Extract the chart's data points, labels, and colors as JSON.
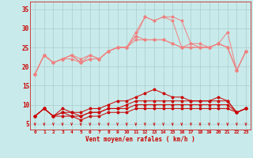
{
  "x": [
    0,
    1,
    2,
    3,
    4,
    5,
    6,
    7,
    8,
    9,
    10,
    11,
    12,
    13,
    14,
    15,
    16,
    17,
    18,
    19,
    20,
    21,
    22,
    23
  ],
  "line1": [
    18,
    23,
    21,
    22,
    23,
    22,
    23,
    22,
    24,
    25,
    25,
    29,
    33,
    32,
    33,
    33,
    32,
    26,
    26,
    25,
    26,
    25,
    19,
    24
  ],
  "line2": [
    18,
    23,
    21,
    22,
    22,
    21,
    23,
    22,
    24,
    25,
    25,
    28,
    33,
    32,
    33,
    32,
    25,
    26,
    25,
    25,
    26,
    29,
    19,
    24
  ],
  "line3": [
    18,
    23,
    21,
    22,
    23,
    21,
    22,
    22,
    24,
    25,
    25,
    28,
    27,
    27,
    27,
    26,
    25,
    25,
    25,
    25,
    26,
    25,
    19,
    24
  ],
  "line4": [
    18,
    23,
    21,
    22,
    23,
    21,
    22,
    22,
    24,
    25,
    25,
    27,
    27,
    27,
    27,
    26,
    25,
    25,
    25,
    25,
    26,
    25,
    19,
    24
  ],
  "line5": [
    7,
    9,
    7,
    9,
    8,
    8,
    9,
    9,
    10,
    11,
    11,
    12,
    13,
    14,
    13,
    12,
    12,
    11,
    11,
    11,
    12,
    11,
    8,
    9
  ],
  "line6": [
    7,
    9,
    7,
    8,
    8,
    7,
    8,
    8,
    9,
    9,
    10,
    11,
    11,
    11,
    11,
    11,
    11,
    11,
    11,
    11,
    11,
    11,
    8,
    9
  ],
  "line7": [
    7,
    9,
    7,
    8,
    7,
    7,
    8,
    8,
    9,
    9,
    9,
    10,
    10,
    10,
    10,
    10,
    10,
    10,
    10,
    10,
    10,
    10,
    8,
    9
  ],
  "line8": [
    7,
    9,
    7,
    7,
    7,
    6,
    7,
    7,
    8,
    8,
    8,
    9,
    9,
    9,
    9,
    9,
    9,
    9,
    9,
    9,
    9,
    9,
    8,
    9
  ],
  "xlabel": "Vent moyen/en rafales ( km/h )",
  "yticks": [
    5,
    10,
    15,
    20,
    25,
    30,
    35
  ],
  "xticks": [
    0,
    1,
    2,
    3,
    4,
    5,
    6,
    7,
    8,
    9,
    10,
    11,
    12,
    13,
    14,
    15,
    16,
    17,
    18,
    19,
    20,
    21,
    22,
    23
  ],
  "ylim": [
    3.5,
    37
  ],
  "xlim": [
    -0.5,
    23.5
  ],
  "color_light": "#f08080",
  "color_dark": "#cc0000",
  "bg_color": "#c8eaea",
  "grid_color": "#aacccc"
}
